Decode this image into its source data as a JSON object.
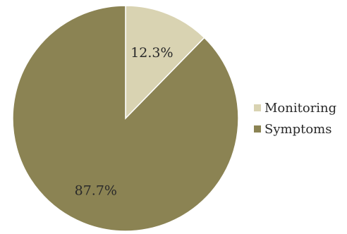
{
  "chart_data": {
    "type": "pie",
    "title": "",
    "slices": [
      {
        "name": "Monitoring",
        "value": 12.3,
        "label": "12.3%",
        "color": "#d9d3b2"
      },
      {
        "name": "Symptoms",
        "value": 87.7,
        "label": "87.7%",
        "color": "#8b8353"
      }
    ],
    "start": "12 o'clock, clockwise",
    "legend_position": "right"
  }
}
